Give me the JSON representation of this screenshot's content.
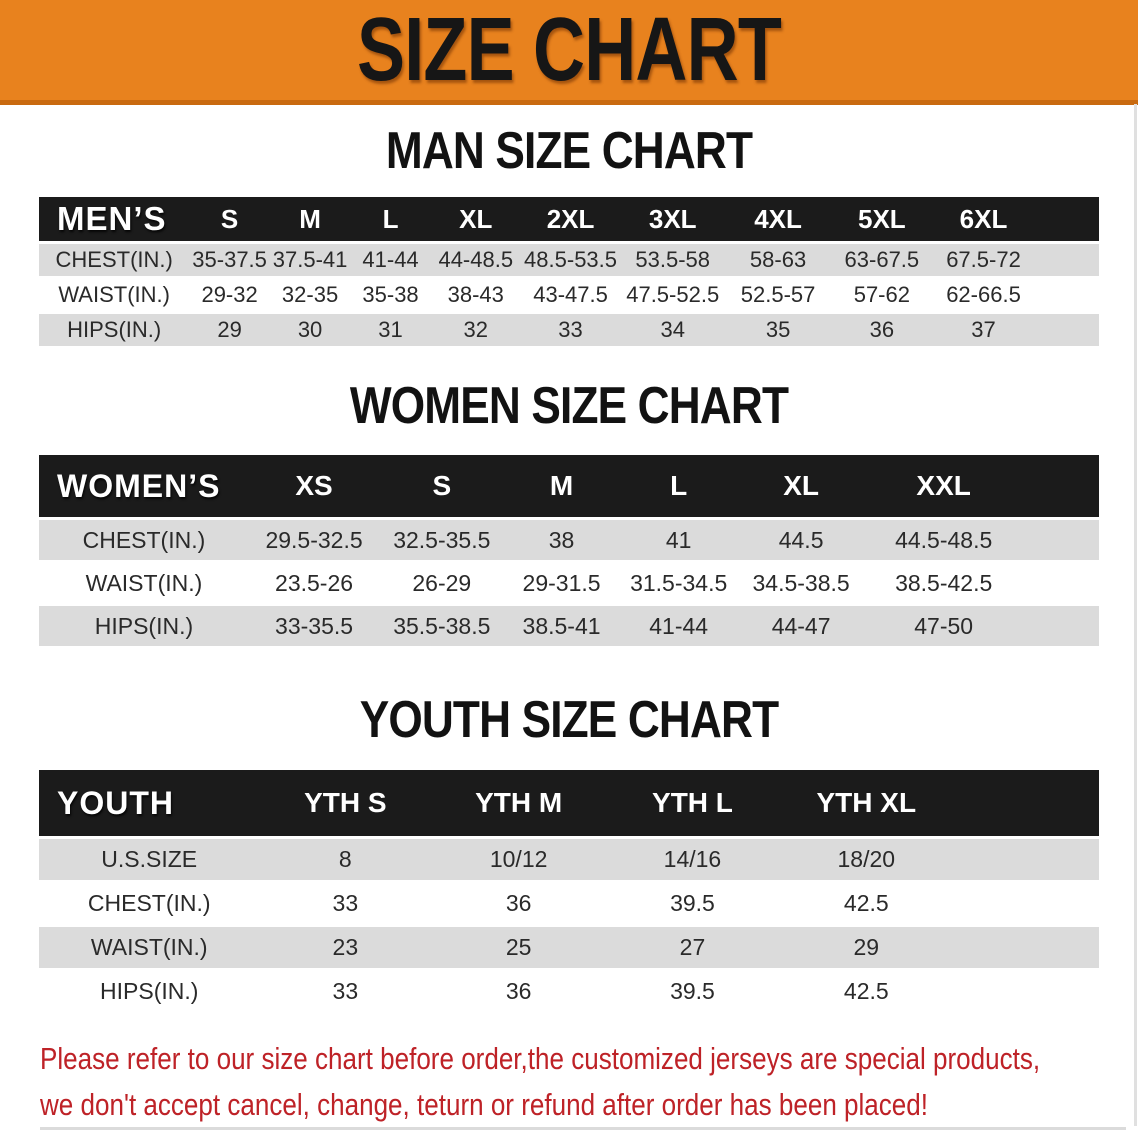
{
  "banner": {
    "title": "SIZE CHART"
  },
  "sections": [
    {
      "heading": "MAN SIZE CHART",
      "group_label": "MEN’S",
      "size_columns": [
        "S",
        "M",
        "L",
        "XL",
        "2XL",
        "3XL",
        "4XL",
        "5XL",
        "6XL"
      ],
      "rows": [
        {
          "label": "CHEST(IN.)",
          "values": [
            "35-37.5",
            "37.5-41",
            "41-44",
            "44-48.5",
            "48.5-53.5",
            "53.5-58",
            "58-63",
            "63-67.5",
            "67.5-72"
          ]
        },
        {
          "label": "WAIST(IN.)",
          "values": [
            "29-32",
            "32-35",
            "35-38",
            "38-43",
            "43-47.5",
            "47.5-52.5",
            "52.5-57",
            "57-62",
            "62-66.5"
          ]
        },
        {
          "label": "HIPS(IN.)",
          "values": [
            "29",
            "30",
            "31",
            "32",
            "33",
            "34",
            "35",
            "36",
            "37"
          ]
        }
      ]
    },
    {
      "heading": "WOMEN SIZE CHART",
      "group_label": "WOMEN’S",
      "size_columns": [
        "XS",
        "S",
        "M",
        "L",
        "XL",
        "XXL"
      ],
      "rows": [
        {
          "label": "CHEST(IN.)",
          "values": [
            "29.5-32.5",
            "32.5-35.5",
            "38",
            "41",
            "44.5",
            "44.5-48.5"
          ]
        },
        {
          "label": "WAIST(IN.)",
          "values": [
            "23.5-26",
            "26-29",
            "29-31.5",
            "31.5-34.5",
            "34.5-38.5",
            "38.5-42.5"
          ]
        },
        {
          "label": "HIPS(IN.)",
          "values": [
            "33-35.5",
            "35.5-38.5",
            "38.5-41",
            "41-44",
            "44-47",
            "47-50"
          ]
        }
      ]
    },
    {
      "heading": "YOUTH SIZE CHART",
      "group_label": "YOUTH",
      "size_columns": [
        "YTH S",
        "YTH M",
        "YTH L",
        "YTH XL"
      ],
      "rows": [
        {
          "label": "U.S.SIZE",
          "values": [
            "8",
            "10/12",
            "14/16",
            "18/20"
          ]
        },
        {
          "label": "CHEST(IN.)",
          "values": [
            "33",
            "36",
            "39.5",
            "42.5"
          ]
        },
        {
          "label": "WAIST(IN.)",
          "values": [
            "23",
            "25",
            "27",
            "29"
          ]
        },
        {
          "label": "HIPS(IN.)",
          "values": [
            "33",
            "36",
            "39.5",
            "42.5"
          ]
        }
      ]
    }
  ],
  "footer": {
    "line1": "Please refer to our size chart before order,the customized jerseys are special products,",
    "line2": "we don't accept cancel, change, teturn or refund after order has been placed!"
  },
  "colors": {
    "banner_bg": "#E8821E",
    "table_header_bg": "#1B1B1B",
    "row_alt_bg": "#DBDBDB",
    "note_red": "#BE2227"
  }
}
